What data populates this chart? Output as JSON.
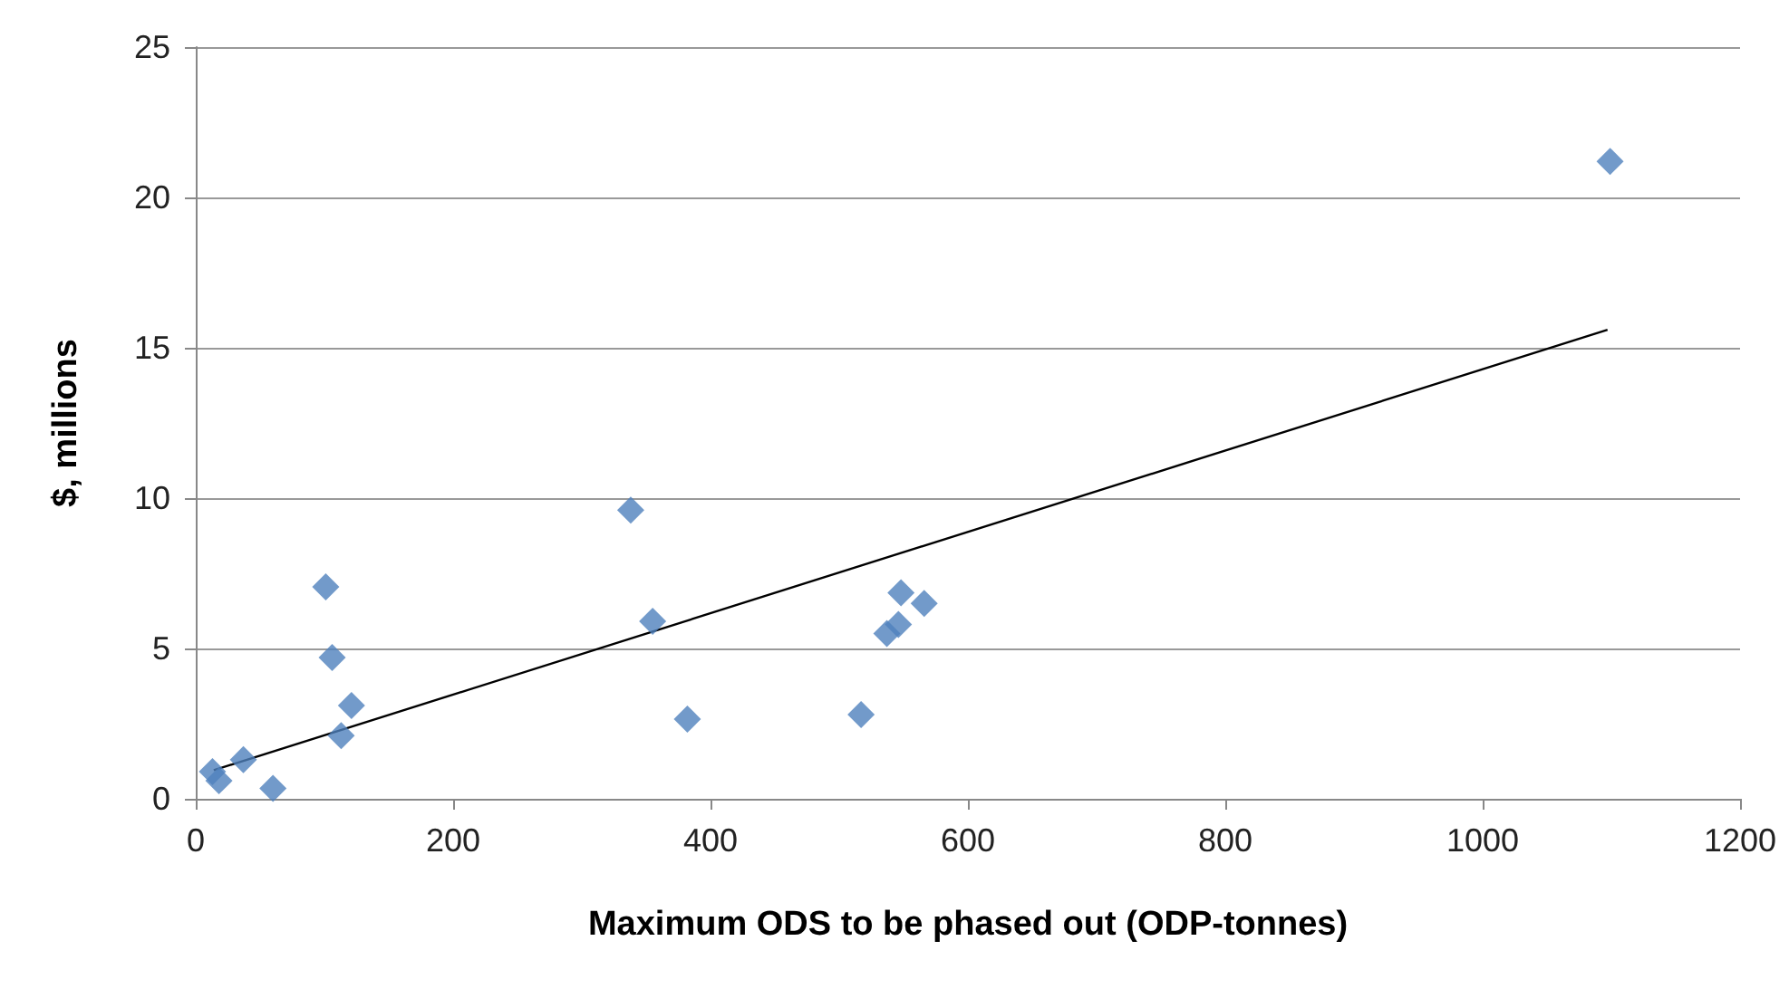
{
  "chart_data": {
    "type": "scatter",
    "xlabel": "Maximum ODS to be phased out (ODP-tonnes)",
    "ylabel": "$, millions",
    "xlim": [
      0,
      1200
    ],
    "xticks": [
      0,
      200,
      400,
      600,
      800,
      1000,
      1200
    ],
    "ylim": [
      0,
      25
    ],
    "yticks": [
      0,
      5,
      10,
      15,
      20,
      25
    ],
    "grid": "y",
    "marker": "diamond",
    "series": [
      {
        "color": "#4f81bd",
        "x": [
          13,
          18,
          37,
          60,
          101,
          106,
          113,
          121,
          338,
          355,
          382,
          517,
          537,
          546,
          548,
          566,
          1099
        ],
        "values": [
          0.9,
          0.6,
          1.3,
          0.35,
          7.05,
          4.7,
          2.1,
          3.1,
          9.6,
          5.9,
          2.65,
          2.8,
          5.5,
          5.8,
          6.85,
          6.5,
          21.2
        ]
      },
      {
        "type": "line",
        "color": "#000000",
        "marker": "none",
        "line_style": "solid",
        "x": [
          14,
          1097
        ],
        "values": [
          0.95,
          15.6
        ]
      }
    ]
  }
}
